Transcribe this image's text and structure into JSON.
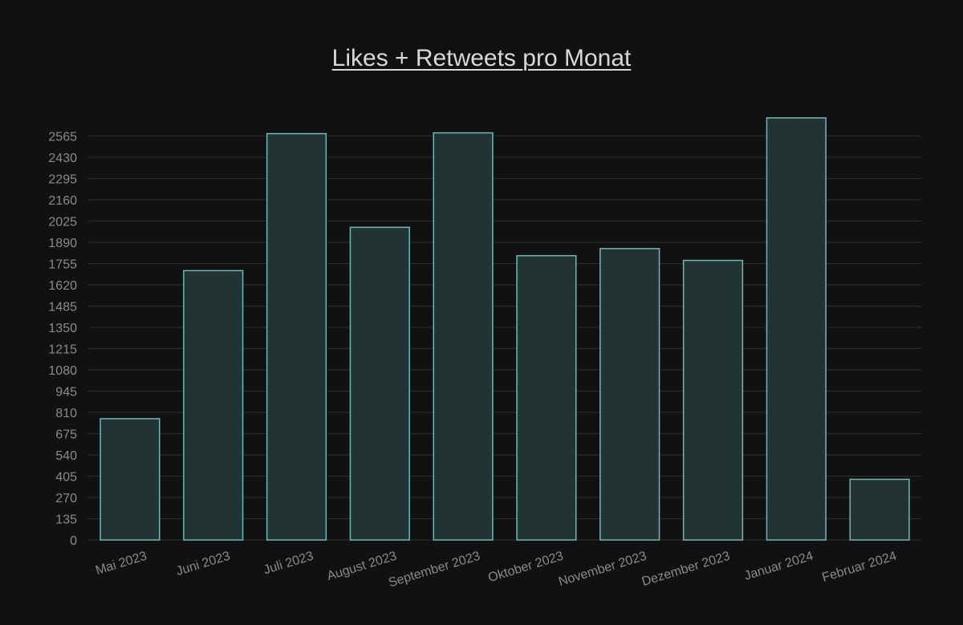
{
  "chart_data": {
    "type": "bar",
    "title": "Likes + Retweets pro Monat",
    "categories": [
      "Mai 2023",
      "Juni 2023",
      "Juli 2023",
      "August 2023",
      "September 2023",
      "Oktober 2023",
      "November 2023",
      "Dezember 2023",
      "Januar 2024",
      "Februar 2024"
    ],
    "values": [
      770,
      1710,
      2580,
      1985,
      2585,
      1805,
      1850,
      1775,
      2680,
      385
    ],
    "y_ticks": [
      0,
      135,
      270,
      405,
      540,
      675,
      810,
      945,
      1080,
      1215,
      1350,
      1485,
      1620,
      1755,
      1890,
      2025,
      2160,
      2295,
      2430,
      2565
    ],
    "ylim": [
      0,
      2700
    ],
    "grid": true,
    "colors": {
      "background": "#111111",
      "bar_fill": "#223333",
      "bar_stroke": "#6fb8b8",
      "grid": "#2f2f2f",
      "text": "#8a8a8a",
      "title": "#d8d8d8"
    }
  }
}
